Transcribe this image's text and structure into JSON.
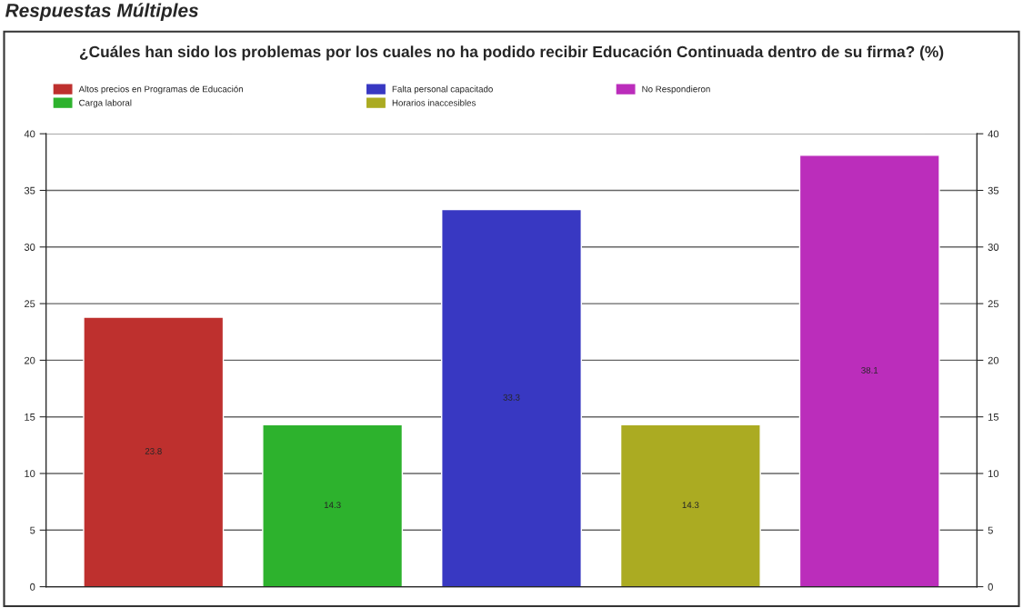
{
  "chart_data": {
    "type": "bar",
    "title": "¿Cuáles han sido los problemas por los cuales no ha podido recibir Educación Continuada dentro de su firma? (%)",
    "annotations": [
      "Respuestas Múltiples"
    ],
    "categories": [
      null,
      null,
      null,
      null,
      null
    ],
    "series": [
      {
        "name": "Altos precios en Programas de Educación",
        "color": "#be302e",
        "values": [
          23.8,
          null,
          null,
          null,
          null
        ]
      },
      {
        "name": "Carga laboral",
        "color": "#2db22d",
        "values": [
          null,
          14.3,
          null,
          null,
          null
        ]
      },
      {
        "name": "Falta personal capacitado",
        "color": "#3838c2",
        "values": [
          null,
          null,
          33.3,
          null,
          null
        ]
      },
      {
        "name": "Horarios inaccesibles",
        "color": "#abab22",
        "values": [
          null,
          null,
          null,
          14.3,
          null
        ]
      },
      {
        "name": "No Respondieron",
        "color": "#bb2dbb",
        "values": [
          null,
          null,
          null,
          null,
          38.1
        ]
      }
    ],
    "data_labels": true,
    "ylim": [
      0,
      40
    ],
    "yticks": [
      0,
      5,
      10,
      15,
      20,
      25,
      30,
      35,
      40
    ],
    "y2lim": [
      0,
      40
    ],
    "y2ticks": [
      0,
      5,
      10,
      15,
      20,
      25,
      30,
      35,
      40
    ],
    "grid": "y",
    "legend": "top"
  }
}
